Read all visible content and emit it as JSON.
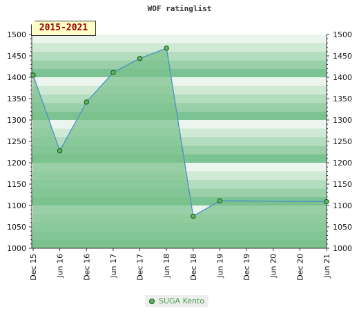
{
  "header": {
    "title": "WOF ratinglist"
  },
  "badge": {
    "text": "2015-2021"
  },
  "legend": {
    "label": "SUGA Kento",
    "marker_color": "#5cb85c"
  },
  "colors": {
    "line": "#4a90c8",
    "area": "#7cc18e",
    "marker": "#5cb85c",
    "marker_stroke": "#1a4d1a",
    "bands": [
      "#7cc394",
      "#99d0a7",
      "#b4ddbf",
      "#cfe9d4",
      "#ebf5ed"
    ]
  },
  "chart_data": {
    "type": "area",
    "title": "WOF ratinglist",
    "xlabel": "",
    "ylabel": "",
    "ylim": [
      1000,
      1500
    ],
    "yticks": [
      1000,
      1050,
      1100,
      1150,
      1200,
      1250,
      1300,
      1350,
      1400,
      1450,
      1500
    ],
    "xticks": [
      "Dec 15",
      "Jun 16",
      "Dec 16",
      "Jun 17",
      "Dec 17",
      "Jun 18",
      "Dec 18",
      "Jun 19",
      "Dec 19",
      "Jun 20",
      "Dec 20",
      "Jun 21"
    ],
    "grid": true,
    "legend_position": "bottom",
    "series": [
      {
        "name": "SUGA Kento",
        "x": [
          "Dec 15",
          "Jun 16",
          "Dec 16",
          "Jun 17",
          "Dec 17",
          "Jun 18",
          "Dec 18",
          "Jun 19",
          "Jun 21"
        ],
        "values": [
          1405,
          1228,
          1342,
          1411,
          1444,
          1468,
          1075,
          1111,
          1109
        ]
      }
    ]
  }
}
